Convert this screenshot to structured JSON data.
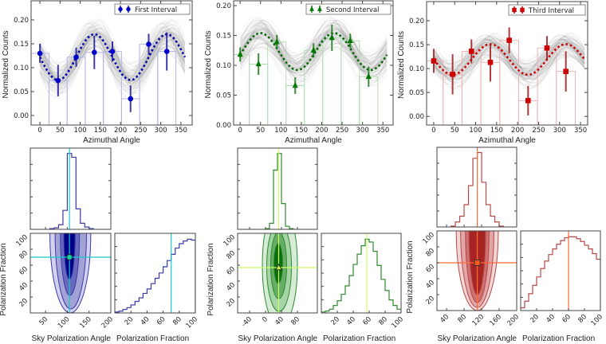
{
  "chart_data": [
    {
      "type": "scatter",
      "legend": "First Interval",
      "xlabel": "Azimuthal Angle",
      "ylabel": "Normalized Counts",
      "xlim": [
        -22,
        378
      ],
      "ylim": [
        -0.02,
        0.24
      ],
      "xticks": [
        "0",
        "50",
        "100",
        "150",
        "200",
        "250",
        "300",
        "350"
      ],
      "yticks": [
        "0.00",
        "0.05",
        "0.10",
        "0.15",
        "0.20"
      ],
      "x": [
        0,
        45,
        90,
        135,
        180,
        225,
        270,
        315
      ],
      "y": [
        0.13,
        0.073,
        0.122,
        0.132,
        0.134,
        0.035,
        0.149,
        0.134
      ],
      "yerr": [
        0.02,
        0.033,
        0.02,
        0.035,
        0.021,
        0.028,
        0.022,
        0.04
      ],
      "model": {
        "mean": 0.122,
        "amplitude": 0.048,
        "peak_angle": 135
      },
      "marker": "circle",
      "colors": {
        "point": "#0000cc",
        "errorbar": "#1a1a99",
        "model": "#0000aa",
        "histogram": "#b4b4e6"
      }
    },
    {
      "type": "scatter",
      "legend": "Second Interval",
      "xlabel": "Azimuthal Angle",
      "ylabel": "Normalized Counts",
      "xlim": [
        -16,
        375
      ],
      "ylim": [
        0,
        0.208
      ],
      "xticks": [
        "0",
        "50",
        "100",
        "150",
        "200",
        "250",
        "300",
        "350"
      ],
      "yticks": [
        "0.00",
        "0.05",
        "0.10",
        "0.15",
        "0.20"
      ],
      "x": [
        0,
        45,
        90,
        135,
        180,
        225,
        270,
        315
      ],
      "y": [
        0.118,
        0.102,
        0.139,
        0.066,
        0.125,
        0.146,
        0.141,
        0.081
      ],
      "yerr": [
        0.012,
        0.018,
        0.012,
        0.014,
        0.012,
        0.022,
        0.012,
        0.017
      ],
      "model": {
        "mean": 0.123,
        "amplitude": 0.031,
        "peak_angle": 50
      },
      "marker": "triangle",
      "colors": {
        "point": "#007700",
        "errorbar": "#1a7a1a",
        "model": "#006600",
        "histogram": "#b4dcb4"
      }
    },
    {
      "type": "scatter",
      "legend": "Third Interval",
      "xlabel": "Azimuthal Angle",
      "ylabel": "Normalized Counts",
      "xlim": [
        -17,
        367
      ],
      "ylim": [
        -0.018,
        0.24
      ],
      "xticks": [
        "0",
        "50",
        "100",
        "150",
        "200",
        "250",
        "300",
        "350"
      ],
      "yticks": [
        "0.00",
        "0.05",
        "0.10",
        "0.15",
        "0.20"
      ],
      "x": [
        0,
        45,
        90,
        135,
        180,
        225,
        270,
        315
      ],
      "y": [
        0.116,
        0.088,
        0.136,
        0.113,
        0.159,
        0.033,
        0.143,
        0.094
      ],
      "yerr": [
        0.025,
        0.042,
        0.025,
        0.04,
        0.027,
        0.031,
        0.025,
        0.042
      ],
      "model": {
        "mean": 0.119,
        "amplitude": 0.032,
        "peak_angle": 135
      },
      "marker": "square",
      "colors": {
        "point": "#cc0000",
        "errorbar": "#a01818",
        "model": "#cc0000",
        "histogram": "#ebb4b4"
      }
    },
    {
      "type": "corner",
      "xlabel": "Sky Polarization Angle",
      "ylabel": "Polarization Fraction",
      "right_xlabel": "Polarization Fraction",
      "angle_lim": [
        15,
        200
      ],
      "fraction_lim": [
        0,
        100
      ],
      "angle_ticks": [
        "50",
        "100",
        "150",
        "200"
      ],
      "fraction_ticks": [
        "20",
        "40",
        "60",
        "80",
        "100"
      ],
      "right_ticks": [
        "20",
        "40",
        "60",
        "80",
        "100"
      ],
      "angle_hist": {
        "start": 60,
        "bin_width": 10,
        "counts": [
          1,
          2,
          6,
          25,
          100,
          95,
          27,
          8,
          3,
          1
        ]
      },
      "fraction_hist": {
        "start": 0,
        "bin_width": 5,
        "counts": [
          1,
          2,
          4,
          6,
          9,
          13,
          17,
          22,
          27,
          33,
          39,
          45,
          52,
          59,
          66,
          73,
          78,
          81,
          83,
          82
        ]
      },
      "best": {
        "angle": 105,
        "fraction": 70
      },
      "regions": [
        {
          "angle": 107,
          "fraction": 100,
          "half_angle": 47,
          "half_fraction": 100
        },
        {
          "angle": 108,
          "fraction": 100,
          "half_angle": 36,
          "half_fraction": 95
        },
        {
          "angle": 106,
          "fraction": 100,
          "half_angle": 22,
          "half_fraction": 78
        },
        {
          "angle": 105,
          "fraction": 100,
          "half_angle": 13,
          "half_fraction": 58
        }
      ],
      "marker": "circle",
      "colors": {
        "levels": [
          "#d2d2ee",
          "#a2a2d6",
          "#6868bc",
          "#000088"
        ],
        "line": "#3a3aa8",
        "best": "#19c8c8",
        "marker": "#19c8a8"
      }
    },
    {
      "type": "corner",
      "xlabel": "Sky Polarization Angle",
      "ylabel": "Polarization Fraction",
      "right_xlabel": "Polarization Fraction",
      "angle_lim": [
        -70,
        130
      ],
      "fraction_lim": [
        0,
        100
      ],
      "angle_ticks": [
        "-40",
        "0",
        "40",
        "80"
      ],
      "fraction_ticks": [
        "20",
        "40",
        "60",
        "80",
        "100"
      ],
      "right_ticks": [
        "20",
        "40",
        "60",
        "80",
        "100"
      ],
      "angle_hist": {
        "start": 0,
        "bin_width": 10,
        "counts": [
          1,
          8,
          78,
          100,
          34,
          4,
          1
        ]
      },
      "fraction_hist": {
        "start": 0,
        "bin_width": 5,
        "counts": [
          1,
          2,
          4,
          8,
          13,
          20,
          29,
          40,
          52,
          63,
          72,
          79,
          76,
          66,
          51,
          36,
          24,
          14,
          8,
          4
        ]
      },
      "best": {
        "angle": 33,
        "fraction": 57
      },
      "regions": [
        {
          "angle": 36,
          "fraction": 60,
          "half_angle": 44,
          "half_fraction": 78
        },
        {
          "angle": 34,
          "fraction": 58,
          "half_angle": 31,
          "half_fraction": 56
        },
        {
          "angle": 33,
          "fraction": 60,
          "half_angle": 20,
          "half_fraction": 42
        },
        {
          "angle": 32,
          "fraction": 62,
          "half_angle": 11,
          "half_fraction": 25
        }
      ],
      "marker": "triangle",
      "colors": {
        "levels": [
          "#d6ecd6",
          "#a6d4a6",
          "#66ad66",
          "#0a6e0a"
        ],
        "line": "#2e8a2e",
        "best": "#ccff66",
        "marker": "#ccff33"
      }
    },
    {
      "type": "corner",
      "xlabel": "Sky Polarization Angle",
      "ylabel": "Polarization Fraction",
      "right_xlabel": "Polarization Fraction",
      "angle_lim": [
        18,
        200
      ],
      "fraction_lim": [
        0,
        100
      ],
      "angle_ticks": [
        "40",
        "80",
        "120",
        "160",
        "200"
      ],
      "fraction_ticks": [
        "20",
        "40",
        "60",
        "80",
        "100"
      ],
      "right_ticks": [
        "20",
        "40",
        "60",
        "80",
        "100"
      ],
      "angle_hist": {
        "start": 50,
        "bin_width": 10,
        "counts": [
          1,
          6,
          13,
          27,
          50,
          83,
          90,
          54,
          27,
          13,
          6,
          1
        ]
      },
      "fraction_hist": {
        "start": 0,
        "bin_width": 5,
        "counts": [
          3,
          10,
          18,
          27,
          36,
          45,
          53,
          60,
          66,
          71,
          75,
          78,
          79,
          79,
          77,
          74,
          70,
          66,
          61,
          55
        ]
      },
      "best": {
        "angle": 110,
        "fraction": 60
      },
      "regions": [
        {
          "angle": 110,
          "fraction": 100,
          "half_angle": 48,
          "half_fraction": 100
        },
        {
          "angle": 110,
          "fraction": 100,
          "half_angle": 38,
          "half_fraction": 96
        },
        {
          "angle": 110,
          "fraction": 100,
          "half_angle": 27,
          "half_fraction": 90
        },
        {
          "angle": 110,
          "fraction": 100,
          "half_angle": 19,
          "half_fraction": 80
        }
      ],
      "marker": "square",
      "colors": {
        "levels": [
          "#f2d6d6",
          "#e2a6a6",
          "#cc7070",
          "#a82424"
        ],
        "line": "#b84848",
        "best": "#ff6a33",
        "marker": "#ff5a1a"
      }
    }
  ]
}
